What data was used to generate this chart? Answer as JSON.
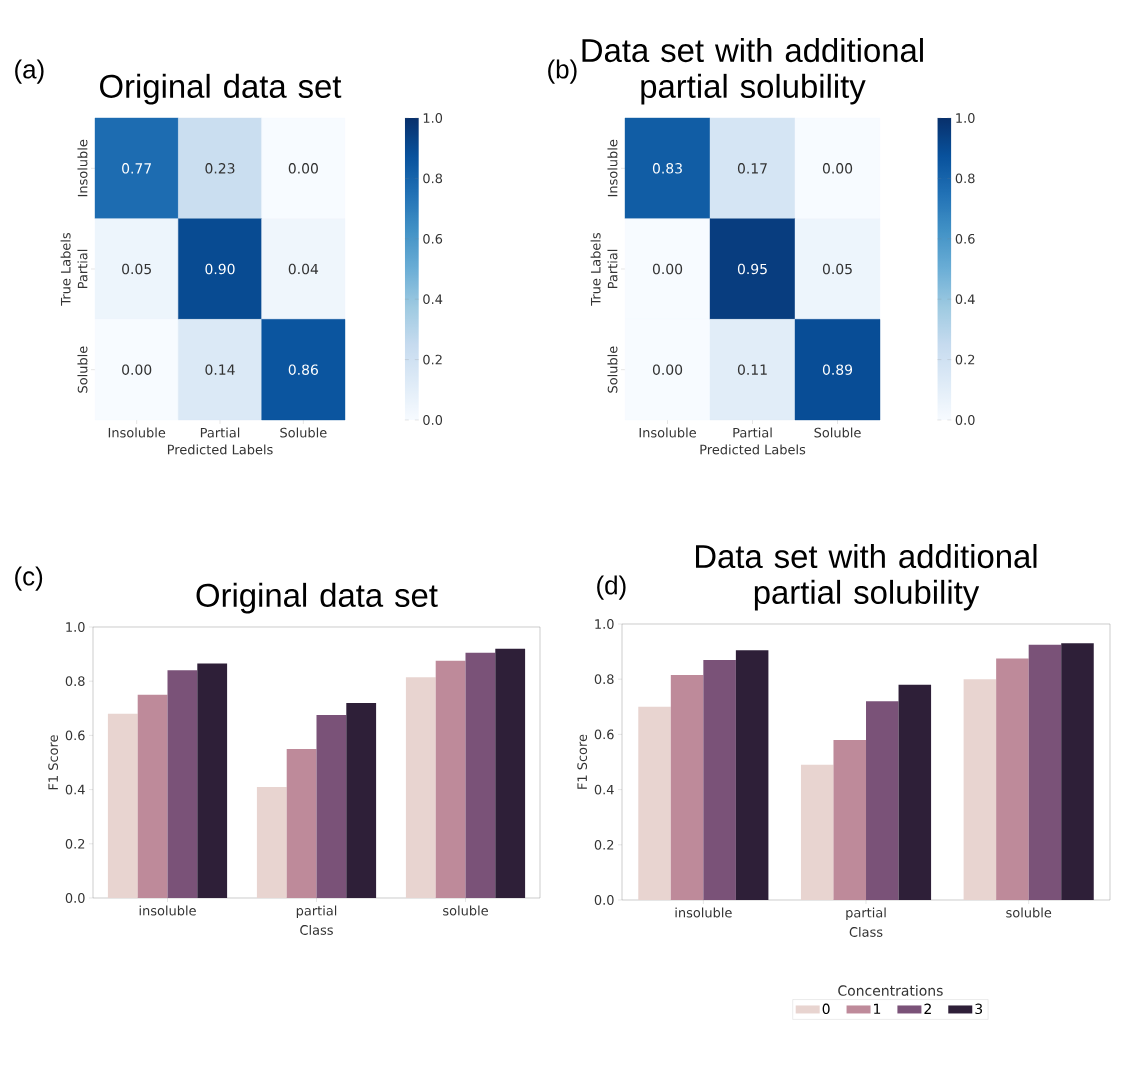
{
  "chart_data": [
    {
      "type": "heatmap",
      "title": "Original data set",
      "xlabel": "Predicted Labels",
      "ylabel": "True Labels",
      "annotations": [
        "(a)"
      ],
      "categories": [
        "Insoluble",
        "Partial",
        "Soluble"
      ],
      "y_categories": [
        "Insoluble",
        "Partial",
        "Soluble"
      ],
      "cells": [
        [
          0.77,
          0.23,
          0.0
        ],
        [
          0.05,
          0.9,
          0.04
        ],
        [
          0.0,
          0.14,
          0.86
        ]
      ],
      "cell_labels": [
        [
          "0.77",
          "0.23",
          "0.00"
        ],
        [
          "0.05",
          "0.90",
          "0.04"
        ],
        [
          "0.00",
          "0.14",
          "0.86"
        ]
      ],
      "clim": [
        0,
        1
      ],
      "cticks": [
        {
          "value": 0,
          "label": "0.0"
        },
        {
          "value": 0.2,
          "label": "0.2"
        },
        {
          "value": 0.4,
          "label": "0.4"
        },
        {
          "value": 0.6,
          "label": "0.6"
        },
        {
          "value": 0.8,
          "label": "0.8"
        },
        {
          "value": 1,
          "label": "1.0"
        }
      ]
    },
    {
      "type": "heatmap",
      "title": "Data set with additional partial solubility",
      "xlabel": "Predicted Labels",
      "ylabel": "True Labels",
      "annotations": [
        "(b)"
      ],
      "categories": [
        "Insoluble",
        "Partial",
        "Soluble"
      ],
      "y_categories": [
        "Insoluble",
        "Partial",
        "Soluble"
      ],
      "cells": [
        [
          0.83,
          0.17,
          0.0
        ],
        [
          0.0,
          0.95,
          0.05
        ],
        [
          0.0,
          0.11,
          0.89
        ]
      ],
      "cell_labels": [
        [
          "0.83",
          "0.17",
          "0.00"
        ],
        [
          "0.00",
          "0.95",
          "0.05"
        ],
        [
          "0.00",
          "0.11",
          "0.89"
        ]
      ],
      "clim": [
        0,
        1
      ],
      "cticks": [
        {
          "value": 0,
          "label": "0.0"
        },
        {
          "value": 0.2,
          "label": "0.2"
        },
        {
          "value": 0.4,
          "label": "0.4"
        },
        {
          "value": 0.6,
          "label": "0.6"
        },
        {
          "value": 0.8,
          "label": "0.8"
        },
        {
          "value": 1,
          "label": "1.0"
        }
      ]
    },
    {
      "type": "bar",
      "title": "Original data set",
      "xlabel": "Class",
      "ylabel": "F1 Score",
      "annotations": [
        "(c)"
      ],
      "categories": [
        "insoluble",
        "partial",
        "soluble"
      ],
      "series": [
        {
          "color": "#e8d4d0",
          "values": [
            0.68,
            0.41,
            0.815
          ]
        },
        {
          "color": "#be8a9a",
          "values": [
            0.75,
            0.55,
            0.875
          ]
        },
        {
          "color": "#7a5278",
          "values": [
            0.84,
            0.675,
            0.905
          ]
        },
        {
          "color": "#2e1f38",
          "values": [
            0.865,
            0.72,
            0.92
          ]
        }
      ],
      "ylim": [
        0,
        1
      ],
      "yticks": [
        {
          "value": 0,
          "label": "0.0"
        },
        {
          "value": 0.2,
          "label": "0.2"
        },
        {
          "value": 0.4,
          "label": "0.4"
        },
        {
          "value": 0.6,
          "label": "0.6"
        },
        {
          "value": 0.8,
          "label": "0.8"
        },
        {
          "value": 1,
          "label": "1.0"
        }
      ]
    },
    {
      "type": "bar",
      "title": "Data set with additional partial solubility",
      "xlabel": "Class",
      "ylabel": "F1 Score",
      "annotations": [
        "(d)"
      ],
      "categories": [
        "insoluble",
        "partial",
        "soluble"
      ],
      "series": [
        {
          "name": "0",
          "color": "#e8d4d0",
          "values": [
            0.7,
            0.49,
            0.8
          ]
        },
        {
          "name": "1",
          "color": "#be8a9a",
          "values": [
            0.815,
            0.58,
            0.875
          ]
        },
        {
          "name": "2",
          "color": "#7a5278",
          "values": [
            0.87,
            0.72,
            0.925
          ]
        },
        {
          "name": "3",
          "color": "#2e1f38",
          "values": [
            0.905,
            0.78,
            0.93
          ]
        }
      ],
      "ylim": [
        0,
        1
      ],
      "yticks": [
        {
          "value": 0,
          "label": "0.0"
        },
        {
          "value": 0.2,
          "label": "0.2"
        },
        {
          "value": 0.4,
          "label": "0.4"
        },
        {
          "value": 0.6,
          "label": "0.6"
        },
        {
          "value": 0.8,
          "label": "0.8"
        },
        {
          "value": 1,
          "label": "1.0"
        }
      ],
      "legend": "bottom",
      "legend_title": "Concentrations"
    }
  ]
}
